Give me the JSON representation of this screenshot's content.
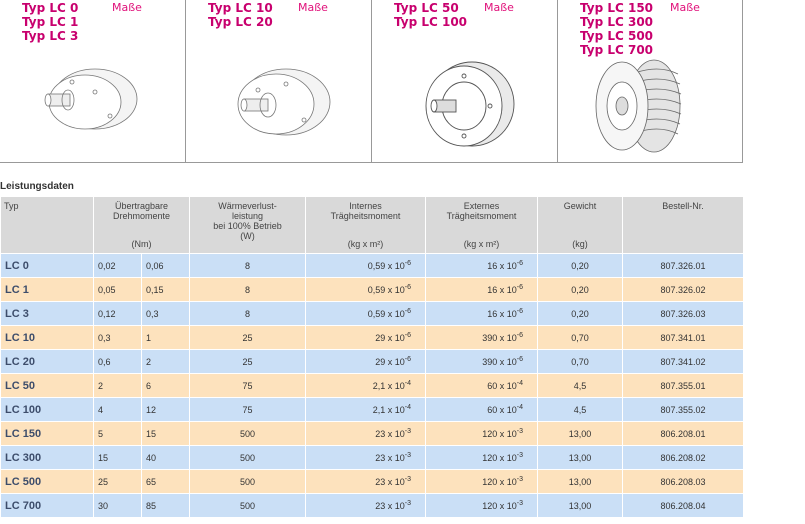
{
  "products": [
    {
      "lines": [
        "Typ LC 0",
        "Typ LC 1",
        "Typ LC 3"
      ],
      "link": "Maße"
    },
    {
      "lines": [
        "Typ LC 10",
        "Typ LC 20"
      ],
      "link": "Maße"
    },
    {
      "lines": [
        "Typ LC 50",
        "Typ LC 100"
      ],
      "link": "Maße"
    },
    {
      "lines": [
        "Typ LC 150",
        "Typ LC 300",
        "Typ LC 500",
        "Typ LC 700"
      ],
      "link": "Maße"
    }
  ],
  "section_title": "Leistungsdaten",
  "table": {
    "header": [
      {
        "lines": [
          "Typ"
        ]
      },
      {
        "lines": [
          "Übertragbare",
          "Drehmomente"
        ],
        "unit": "(Nm)"
      },
      {
        "lines": [
          "Wärmeverlust-",
          "leistung",
          "bei 100% Betrieb",
          "(W)"
        ]
      },
      {
        "lines": [
          "Internes",
          "Trägheitsmoment"
        ],
        "unit": "(kg x m²)"
      },
      {
        "lines": [
          "Externes",
          "Trägheitsmoment"
        ],
        "unit": "(kg x m²)"
      },
      {
        "lines": [
          "Gewicht"
        ],
        "unit": "(kg)"
      },
      {
        "lines": [
          "Bestell-Nr."
        ]
      }
    ],
    "rows": [
      [
        "LC 0",
        "0,02",
        "0,06",
        "8",
        {
          "base": "0,59 x 10",
          "exp": "-6"
        },
        {
          "base": "16 x 10",
          "exp": "-6"
        },
        "0,20",
        "807.326.01"
      ],
      [
        "LC 1",
        "0,05",
        "0,15",
        "8",
        {
          "base": "0,59 x 10",
          "exp": "-6"
        },
        {
          "base": "16 x 10",
          "exp": "-6"
        },
        "0,20",
        "807.326.02"
      ],
      [
        "LC 3",
        "0,12",
        "0,3",
        "8",
        {
          "base": "0,59 x 10",
          "exp": "-6"
        },
        {
          "base": "16 x 10",
          "exp": "-6"
        },
        "0,20",
        "807.326.03"
      ],
      [
        "LC 10",
        "0,3",
        "1",
        "25",
        {
          "base": "29 x 10",
          "exp": "-6"
        },
        {
          "base": "390 x 10",
          "exp": "-6"
        },
        "0,70",
        "807.341.01"
      ],
      [
        "LC 20",
        "0,6",
        "2",
        "25",
        {
          "base": "29 x 10",
          "exp": "-6"
        },
        {
          "base": "390 x 10",
          "exp": "-6"
        },
        "0,70",
        "807.341.02"
      ],
      [
        "LC 50",
        "2",
        "6",
        "75",
        {
          "base": "2,1 x 10",
          "exp": "-4"
        },
        {
          "base": "60 x 10",
          "exp": "-4"
        },
        "4,5",
        "807.355.01"
      ],
      [
        "LC 100",
        "4",
        "12",
        "75",
        {
          "base": "2,1 x 10",
          "exp": "-4"
        },
        {
          "base": "60 x 10",
          "exp": "-4"
        },
        "4,5",
        "807.355.02"
      ],
      [
        "LC 150",
        "5",
        "15",
        "500",
        {
          "base": "23 x 10",
          "exp": "-3"
        },
        {
          "base": "120 x 10",
          "exp": "-3"
        },
        "13,00",
        "806.208.01"
      ],
      [
        "LC 300",
        "15",
        "40",
        "500",
        {
          "base": "23 x 10",
          "exp": "-3"
        },
        {
          "base": "120 x 10",
          "exp": "-3"
        },
        "13,00",
        "806.208.02"
      ],
      [
        "LC 500",
        "25",
        "65",
        "500",
        {
          "base": "23 x 10",
          "exp": "-3"
        },
        {
          "base": "120 x 10",
          "exp": "-3"
        },
        "13,00",
        "806.208.03"
      ],
      [
        "LC 700",
        "30",
        "85",
        "500",
        {
          "base": "23 x 10",
          "exp": "-3"
        },
        {
          "base": "120 x 10",
          "exp": "-3"
        },
        "13,00",
        "806.208.04"
      ]
    ]
  }
}
